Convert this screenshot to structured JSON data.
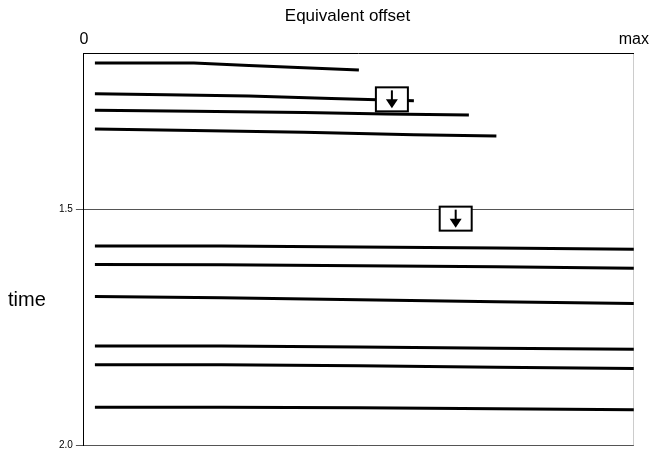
{
  "chart_data": {
    "type": "line",
    "title": "Equivalent offset",
    "y_label": "time",
    "xlim": [
      0,
      1
    ],
    "xticks": [
      0,
      {
        "value": 1,
        "label": "max"
      }
    ],
    "ylim": [
      2.0,
      1.17
    ],
    "yticks": [
      1.5,
      {
        "value": 2,
        "label": "2.0"
      }
    ],
    "grid": true,
    "arrows": [
      {
        "x": 0.56,
        "y": 1.267
      },
      {
        "x": 0.676,
        "y": 1.52
      }
    ],
    "series": [
      {
        "color": "#000000",
        "x": [
          0.02,
          0.1,
          0.2,
          0.3,
          0.4,
          0.5
        ],
        "values": [
          1.19,
          1.19,
          1.19,
          1.195,
          1.2,
          1.205
        ]
      },
      {
        "color": "#000000",
        "x": [
          0.02,
          0.15,
          0.3,
          0.45,
          0.6
        ],
        "values": [
          1.255,
          1.257,
          1.26,
          1.265,
          1.27
        ]
      },
      {
        "color": "#000000",
        "x": [
          0.02,
          0.2,
          0.4,
          0.55,
          0.7
        ],
        "values": [
          1.29,
          1.292,
          1.295,
          1.298,
          1.3
        ]
      },
      {
        "color": "#000000",
        "x": [
          0.02,
          0.2,
          0.4,
          0.6,
          0.75
        ],
        "values": [
          1.33,
          1.333,
          1.337,
          1.342,
          1.345
        ]
      },
      {
        "color": "#000000",
        "x": [
          0.02,
          0.25,
          0.5,
          0.75,
          1.0
        ],
        "values": [
          1.578,
          1.578,
          1.58,
          1.582,
          1.585
        ]
      },
      {
        "color": "#000000",
        "x": [
          0.02,
          0.25,
          0.5,
          0.75,
          1.0
        ],
        "values": [
          1.617,
          1.618,
          1.62,
          1.622,
          1.625
        ]
      },
      {
        "color": "#000000",
        "x": [
          0.02,
          0.25,
          0.5,
          0.75,
          1.0
        ],
        "values": [
          1.685,
          1.688,
          1.692,
          1.696,
          1.7
        ]
      },
      {
        "color": "#000000",
        "x": [
          0.02,
          0.25,
          0.5,
          0.75,
          1.0
        ],
        "values": [
          1.79,
          1.79,
          1.792,
          1.795,
          1.797
        ]
      },
      {
        "color": "#000000",
        "x": [
          0.02,
          0.25,
          0.5,
          0.75,
          1.0
        ],
        "values": [
          1.83,
          1.83,
          1.832,
          1.835,
          1.838
        ]
      },
      {
        "color": "#000000",
        "x": [
          0.02,
          0.25,
          0.5,
          0.75,
          1.0
        ],
        "values": [
          1.92,
          1.92,
          1.921,
          1.923,
          1.925
        ]
      }
    ]
  }
}
